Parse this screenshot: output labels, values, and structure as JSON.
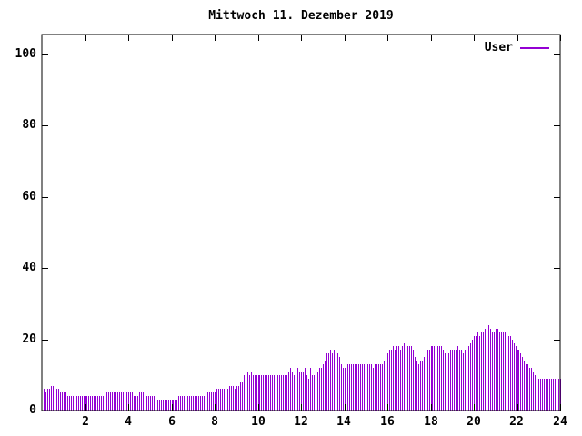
{
  "chart_data": {
    "type": "bar",
    "subtype": "impulses",
    "title": "Mittwoch 11. Dezember 2019",
    "xlabel": "",
    "ylabel": "",
    "xlim": [
      0,
      24
    ],
    "ylim": [
      0,
      100
    ],
    "grid": false,
    "legend_position": "top-right",
    "sample_interval_minutes": 5,
    "x_ticks": [
      2,
      4,
      6,
      8,
      10,
      12,
      14,
      16,
      18,
      20,
      22,
      24
    ],
    "x_tick_labels": [
      "2",
      "4",
      "6",
      "8",
      "10",
      "12",
      "14",
      "16",
      "18",
      "20",
      "22",
      "24"
    ],
    "y_ticks": [
      0,
      20,
      40,
      60,
      80,
      100
    ],
    "y_tick_labels": [
      "0",
      "20",
      "40",
      "60",
      "80",
      "100"
    ],
    "colors": {
      "bar": "#9400D3",
      "axis": "#000000",
      "text": "#000000",
      "background": "#FFFFFF"
    },
    "series": [
      {
        "name": "User",
        "values": [
          6,
          5,
          6,
          6,
          7,
          7,
          6,
          6,
          6,
          5,
          5,
          5,
          5,
          4,
          4,
          4,
          4,
          4,
          4,
          4,
          4,
          4,
          4,
          4,
          4,
          4,
          4,
          4,
          4,
          4,
          4,
          4,
          4,
          4,
          4,
          5,
          5,
          5,
          5,
          5,
          5,
          5,
          5,
          5,
          5,
          5,
          5,
          5,
          5,
          5,
          4,
          4,
          4,
          5,
          5,
          5,
          4,
          4,
          4,
          4,
          4,
          4,
          4,
          3,
          3,
          3,
          3,
          3,
          3,
          3,
          3,
          3,
          3,
          3,
          3,
          4,
          4,
          4,
          4,
          4,
          4,
          4,
          4,
          4,
          4,
          4,
          4,
          4,
          4,
          4,
          5,
          5,
          5,
          5,
          5,
          5,
          6,
          6,
          6,
          6,
          6,
          6,
          6,
          7,
          7,
          7,
          6,
          7,
          7,
          8,
          8,
          10,
          10,
          11,
          10,
          11,
          10,
          10,
          10,
          10,
          10,
          10,
          10,
          10,
          10,
          10,
          10,
          10,
          10,
          10,
          10,
          10,
          10,
          10,
          10,
          10,
          11,
          12,
          11,
          10,
          11,
          12,
          11,
          11,
          11,
          12,
          10,
          9,
          12,
          10,
          10,
          11,
          11,
          12,
          12,
          13,
          14,
          16,
          16,
          17,
          16,
          17,
          17,
          16,
          15,
          13,
          12,
          12,
          13,
          13,
          13,
          13,
          13,
          13,
          13,
          13,
          13,
          13,
          13,
          13,
          13,
          13,
          13,
          12,
          13,
          13,
          13,
          13,
          13,
          14,
          15,
          16,
          17,
          17,
          18,
          17,
          18,
          18,
          17,
          18,
          19,
          18,
          18,
          18,
          18,
          17,
          15,
          14,
          13,
          14,
          14,
          15,
          16,
          17,
          17,
          18,
          18,
          18,
          19,
          18,
          18,
          18,
          17,
          16,
          16,
          16,
          17,
          17,
          17,
          17,
          18,
          17,
          17,
          16,
          17,
          17,
          18,
          19,
          20,
          21,
          21,
          22,
          21,
          22,
          22,
          23,
          22,
          24,
          23,
          22,
          22,
          23,
          23,
          22,
          22,
          22,
          22,
          22,
          21,
          21,
          20,
          19,
          18,
          17,
          17,
          16,
          15,
          14,
          13,
          13,
          12,
          12,
          11,
          10,
          10,
          9,
          9,
          9,
          9,
          9,
          9,
          9,
          9,
          9,
          9,
          9,
          9,
          9
        ]
      }
    ]
  }
}
